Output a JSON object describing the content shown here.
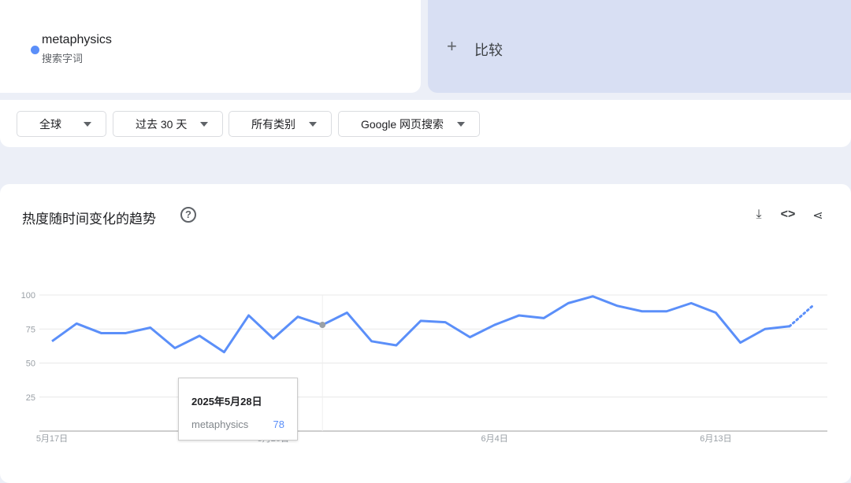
{
  "term": {
    "name": "metaphysics",
    "subtitle": "搜索字词",
    "color": "#5b8ff9"
  },
  "compare": {
    "label": "比较",
    "icon": "plus-icon"
  },
  "filters": [
    "全球",
    "过去 30 天",
    "所有类别",
    "Google 网页搜索"
  ],
  "card": {
    "title": "热度随时间变化的趋势",
    "icons": [
      "help-icon",
      "download-icon",
      "embed-icon",
      "share-icon"
    ]
  },
  "chart_data": {
    "type": "line",
    "x": [
      "5月17日",
      "5月18日",
      "5月19日",
      "5月20日",
      "5月21日",
      "5月22日",
      "5月23日",
      "5月24日",
      "5月25日",
      "5月26日",
      "5月27日",
      "5月28日",
      "5月29日",
      "5月30日",
      "5月31日",
      "6月1日",
      "6月2日",
      "6月3日",
      "6月4日",
      "6月5日",
      "6月6日",
      "6月7日",
      "6月8日",
      "6月9日",
      "6月10日",
      "6月11日",
      "6月12日",
      "6月13日",
      "6月14日",
      "6月15日",
      "6月16日",
      "6月17日"
    ],
    "series": [
      {
        "name": "metaphysics",
        "color": "#5b8ff9",
        "values": [
          66,
          79,
          72,
          72,
          76,
          61,
          70,
          58,
          85,
          68,
          84,
          78,
          87,
          66,
          63,
          81,
          80,
          69,
          78,
          85,
          83,
          94,
          99,
          92,
          88,
          88,
          94,
          87,
          65,
          75,
          77,
          93
        ],
        "partial_last": true
      }
    ],
    "ylim": [
      0,
      100
    ],
    "yticks": [
      "100",
      "75",
      "50",
      "25"
    ],
    "xticks": [
      "5月17日",
      "5月26日",
      "6月4日",
      "6月13日"
    ],
    "grid": true
  },
  "tooltip": {
    "date": "2025年5月28日",
    "series": "metaphysics",
    "value": "78"
  }
}
